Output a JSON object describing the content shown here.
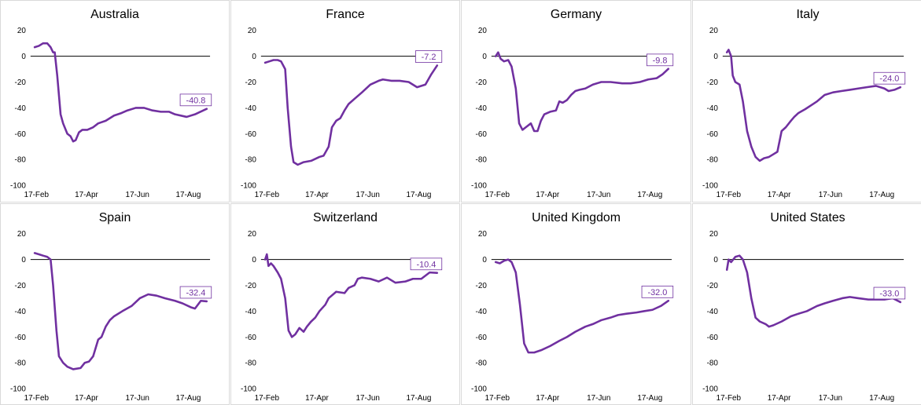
{
  "colors": {
    "line": "#7030a0",
    "zero": "#000000",
    "border": "#d9d9d9"
  },
  "chart_data": [
    {
      "type": "line",
      "title": "Australia",
      "ylim": [
        -100,
        20
      ],
      "yticks": [
        20,
        0,
        -20,
        -40,
        -60,
        -80,
        -100
      ],
      "xticks": [
        "17-Feb",
        "17-Apr",
        "17-Jun",
        "17-Aug"
      ],
      "end_label": "-40.8",
      "x": [
        "2020-02-15",
        "2020-02-20",
        "2020-02-25",
        "2020-03-01",
        "2020-03-05",
        "2020-03-08",
        "2020-03-10",
        "2020-03-13",
        "2020-03-17",
        "2020-03-20",
        "2020-03-25",
        "2020-03-29",
        "2020-04-01",
        "2020-04-04",
        "2020-04-08",
        "2020-04-12",
        "2020-04-18",
        "2020-04-25",
        "2020-05-01",
        "2020-05-10",
        "2020-05-20",
        "2020-05-29",
        "2020-06-05",
        "2020-06-15",
        "2020-06-25",
        "2020-07-05",
        "2020-07-15",
        "2020-07-25",
        "2020-08-01",
        "2020-08-15",
        "2020-08-25",
        "2020-09-08"
      ],
      "y": [
        7,
        8,
        10,
        10,
        7,
        3,
        3,
        -15,
        -45,
        -52,
        -60,
        -62,
        -66,
        -65,
        -59,
        -57,
        -57,
        -55,
        -52,
        -50,
        -46,
        -44,
        -42,
        -40,
        -40,
        -42,
        -43,
        -43,
        -45,
        -47,
        -45,
        -40.8
      ]
    },
    {
      "type": "line",
      "title": "France",
      "ylim": [
        -100,
        20
      ],
      "yticks": [
        20,
        0,
        -20,
        -40,
        -60,
        -80,
        -100
      ],
      "xticks": [
        "17-Feb",
        "17-Apr",
        "17-Jun",
        "17-Aug"
      ],
      "end_label": "-7.2",
      "x": [
        "2020-02-15",
        "2020-02-20",
        "2020-02-25",
        "2020-03-01",
        "2020-03-05",
        "2020-03-10",
        "2020-03-13",
        "2020-03-17",
        "2020-03-20",
        "2020-03-25",
        "2020-04-01",
        "2020-04-10",
        "2020-04-20",
        "2020-04-25",
        "2020-05-01",
        "2020-05-05",
        "2020-05-10",
        "2020-05-15",
        "2020-05-20",
        "2020-05-25",
        "2020-06-01",
        "2020-06-10",
        "2020-06-20",
        "2020-06-30",
        "2020-07-05",
        "2020-07-15",
        "2020-07-25",
        "2020-08-05",
        "2020-08-15",
        "2020-08-25",
        "2020-09-01",
        "2020-09-08"
      ],
      "y": [
        -5,
        -4,
        -3,
        -3,
        -4,
        -10,
        -40,
        -70,
        -82,
        -84,
        -82,
        -81,
        -78,
        -77,
        -70,
        -55,
        -50,
        -48,
        -42,
        -37,
        -33,
        -28,
        -22,
        -19,
        -18,
        -19,
        -19,
        -20,
        -24,
        -22,
        -14,
        -7.2
      ]
    },
    {
      "type": "line",
      "title": "Germany",
      "ylim": [
        -100,
        20
      ],
      "yticks": [
        20,
        0,
        -20,
        -40,
        -60,
        -80,
        -100
      ],
      "xticks": [
        "17-Feb",
        "17-Apr",
        "17-Jun",
        "17-Aug"
      ],
      "end_label": "-9.8",
      "x": [
        "2020-02-15",
        "2020-02-18",
        "2020-02-21",
        "2020-02-25",
        "2020-03-01",
        "2020-03-05",
        "2020-03-10",
        "2020-03-14",
        "2020-03-18",
        "2020-03-22",
        "2020-03-28",
        "2020-04-01",
        "2020-04-05",
        "2020-04-09",
        "2020-04-13",
        "2020-04-20",
        "2020-04-27",
        "2020-05-01",
        "2020-05-05",
        "2020-05-10",
        "2020-05-15",
        "2020-05-20",
        "2020-05-25",
        "2020-06-01",
        "2020-06-10",
        "2020-06-20",
        "2020-07-01",
        "2020-07-15",
        "2020-07-25",
        "2020-08-05",
        "2020-08-15",
        "2020-08-25",
        "2020-09-01",
        "2020-09-08"
      ],
      "y": [
        0,
        3,
        -2,
        -4,
        -3,
        -8,
        -25,
        -52,
        -57,
        -55,
        -52,
        -58,
        -58,
        -50,
        -45,
        -43,
        -42,
        -35,
        -36,
        -34,
        -30,
        -27,
        -26,
        -25,
        -22,
        -20,
        -20,
        -21,
        -21,
        -20,
        -18,
        -17,
        -14,
        -9.8
      ]
    },
    {
      "type": "line",
      "title": "Italy",
      "ylim": [
        -100,
        20
      ],
      "yticks": [
        20,
        0,
        -20,
        -40,
        -60,
        -80,
        -100
      ],
      "xticks": [
        "17-Feb",
        "17-Apr",
        "17-Jun",
        "17-Aug"
      ],
      "end_label": "-24.0",
      "x": [
        "2020-02-15",
        "2020-02-17",
        "2020-02-20",
        "2020-02-22",
        "2020-02-25",
        "2020-03-01",
        "2020-03-05",
        "2020-03-10",
        "2020-03-15",
        "2020-03-20",
        "2020-03-25",
        "2020-03-30",
        "2020-04-05",
        "2020-04-10",
        "2020-04-15",
        "2020-04-20",
        "2020-04-25",
        "2020-05-01",
        "2020-05-05",
        "2020-05-10",
        "2020-05-18",
        "2020-05-25",
        "2020-06-01",
        "2020-06-10",
        "2020-06-20",
        "2020-06-30",
        "2020-07-10",
        "2020-07-20",
        "2020-07-30",
        "2020-08-10",
        "2020-08-20",
        "2020-08-25",
        "2020-09-01",
        "2020-09-08"
      ],
      "y": [
        3,
        5,
        0,
        -15,
        -20,
        -22,
        -35,
        -58,
        -70,
        -78,
        -81,
        -79,
        -78,
        -76,
        -74,
        -58,
        -55,
        -50,
        -47,
        -44,
        -41,
        -38,
        -35,
        -30,
        -28,
        -27,
        -26,
        -25,
        -24,
        -23,
        -25,
        -27,
        -26,
        -24.0
      ]
    },
    {
      "type": "line",
      "title": "Spain",
      "ylim": [
        -100,
        20
      ],
      "yticks": [
        20,
        0,
        -20,
        -40,
        -60,
        -80,
        -100
      ],
      "xticks": [
        "17-Feb",
        "17-Apr",
        "17-Jun",
        "17-Aug"
      ],
      "end_label": "-32.4",
      "x": [
        "2020-02-15",
        "2020-02-20",
        "2020-02-25",
        "2020-03-01",
        "2020-03-05",
        "2020-03-08",
        "2020-03-12",
        "2020-03-15",
        "2020-03-20",
        "2020-03-25",
        "2020-04-01",
        "2020-04-10",
        "2020-04-15",
        "2020-04-20",
        "2020-04-25",
        "2020-05-01",
        "2020-05-05",
        "2020-05-10",
        "2020-05-15",
        "2020-05-20",
        "2020-05-30",
        "2020-06-10",
        "2020-06-20",
        "2020-06-30",
        "2020-07-10",
        "2020-07-20",
        "2020-08-01",
        "2020-08-10",
        "2020-08-20",
        "2020-08-25",
        "2020-09-01",
        "2020-09-08"
      ],
      "y": [
        5,
        4,
        3,
        2,
        0,
        -20,
        -55,
        -75,
        -80,
        -83,
        -85,
        -84,
        -80,
        -79,
        -75,
        -62,
        -60,
        -52,
        -47,
        -44,
        -40,
        -36,
        -30,
        -27,
        -28,
        -30,
        -32,
        -34,
        -37,
        -38,
        -32,
        -32.4
      ]
    },
    {
      "type": "line",
      "title": "Switzerland",
      "ylim": [
        -100,
        20
      ],
      "yticks": [
        20,
        0,
        -20,
        -40,
        -60,
        -80,
        -100
      ],
      "xticks": [
        "17-Feb",
        "17-Apr",
        "17-Jun",
        "17-Aug"
      ],
      "end_label": "-10.4",
      "x": [
        "2020-02-15",
        "2020-02-17",
        "2020-02-19",
        "2020-02-22",
        "2020-02-25",
        "2020-03-01",
        "2020-03-05",
        "2020-03-10",
        "2020-03-14",
        "2020-03-18",
        "2020-03-22",
        "2020-03-27",
        "2020-04-01",
        "2020-04-05",
        "2020-04-10",
        "2020-04-15",
        "2020-04-20",
        "2020-04-27",
        "2020-05-01",
        "2020-05-10",
        "2020-05-20",
        "2020-05-25",
        "2020-06-01",
        "2020-06-05",
        "2020-06-10",
        "2020-06-20",
        "2020-06-30",
        "2020-07-10",
        "2020-07-20",
        "2020-08-01",
        "2020-08-10",
        "2020-08-20",
        "2020-08-30",
        "2020-09-08"
      ],
      "y": [
        0,
        4,
        -5,
        -3,
        -5,
        -10,
        -15,
        -30,
        -55,
        -60,
        -58,
        -53,
        -56,
        -52,
        -48,
        -45,
        -40,
        -35,
        -30,
        -25,
        -26,
        -22,
        -20,
        -15,
        -14,
        -15,
        -17,
        -14,
        -18,
        -17,
        -15,
        -15,
        -10,
        -10.4
      ]
    },
    {
      "type": "line",
      "title": "United Kingdom",
      "ylim": [
        -100,
        20
      ],
      "yticks": [
        20,
        0,
        -20,
        -40,
        -60,
        -80,
        -100
      ],
      "xticks": [
        "17-Feb",
        "17-Apr",
        "17-Jun",
        "17-Aug"
      ],
      "end_label": "-32.0",
      "x": [
        "2020-02-15",
        "2020-02-20",
        "2020-02-25",
        "2020-03-01",
        "2020-03-05",
        "2020-03-10",
        "2020-03-15",
        "2020-03-20",
        "2020-03-25",
        "2020-04-01",
        "2020-04-10",
        "2020-04-20",
        "2020-05-01",
        "2020-05-10",
        "2020-05-20",
        "2020-06-01",
        "2020-06-10",
        "2020-06-20",
        "2020-07-01",
        "2020-07-10",
        "2020-07-20",
        "2020-08-01",
        "2020-08-10",
        "2020-08-20",
        "2020-08-30",
        "2020-09-08"
      ],
      "y": [
        -2,
        -3,
        -1,
        0,
        -2,
        -10,
        -35,
        -65,
        -72,
        -72,
        -70,
        -67,
        -63,
        -60,
        -56,
        -52,
        -50,
        -47,
        -45,
        -43,
        -42,
        -41,
        -40,
        -39,
        -36,
        -32.0
      ]
    },
    {
      "type": "line",
      "title": "United States",
      "ylim": [
        -100,
        20
      ],
      "yticks": [
        20,
        0,
        -20,
        -40,
        -60,
        -80,
        -100
      ],
      "xticks": [
        "17-Feb",
        "17-Apr",
        "17-Jun",
        "17-Aug"
      ],
      "end_label": "-33.0",
      "x": [
        "2020-02-15",
        "2020-02-17",
        "2020-02-20",
        "2020-02-25",
        "2020-03-01",
        "2020-03-05",
        "2020-03-10",
        "2020-03-15",
        "2020-03-20",
        "2020-03-25",
        "2020-04-01",
        "2020-04-05",
        "2020-04-10",
        "2020-04-20",
        "2020-05-01",
        "2020-05-10",
        "2020-05-20",
        "2020-06-01",
        "2020-06-10",
        "2020-06-20",
        "2020-07-01",
        "2020-07-10",
        "2020-07-20",
        "2020-08-01",
        "2020-08-10",
        "2020-08-20",
        "2020-08-30",
        "2020-09-05",
        "2020-09-08"
      ],
      "y": [
        -8,
        0,
        -2,
        2,
        3,
        0,
        -10,
        -30,
        -45,
        -48,
        -50,
        -52,
        -51,
        -48,
        -44,
        -42,
        -40,
        -36,
        -34,
        -32,
        -30,
        -29,
        -30,
        -31,
        -31,
        -31,
        -30,
        -32,
        -33.0
      ]
    }
  ]
}
